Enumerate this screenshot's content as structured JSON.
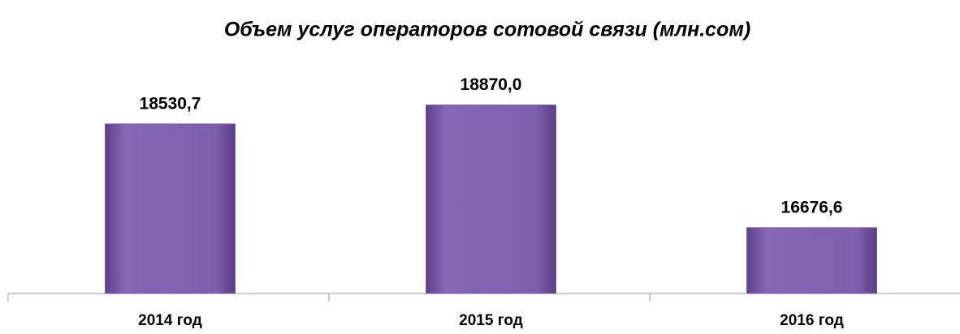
{
  "chart_data": {
    "type": "bar",
    "title": "Объем услуг операторов сотовой связи (млн.сом)",
    "categories": [
      "2014 год",
      "2015 год",
      "2016 год"
    ],
    "values": [
      18530.7,
      18870.0,
      16676.6
    ],
    "value_labels": [
      "18530,7",
      "18870,0",
      "16676,6"
    ],
    "color": "#7f5fad",
    "ylim": [
      15500,
      19500
    ]
  }
}
